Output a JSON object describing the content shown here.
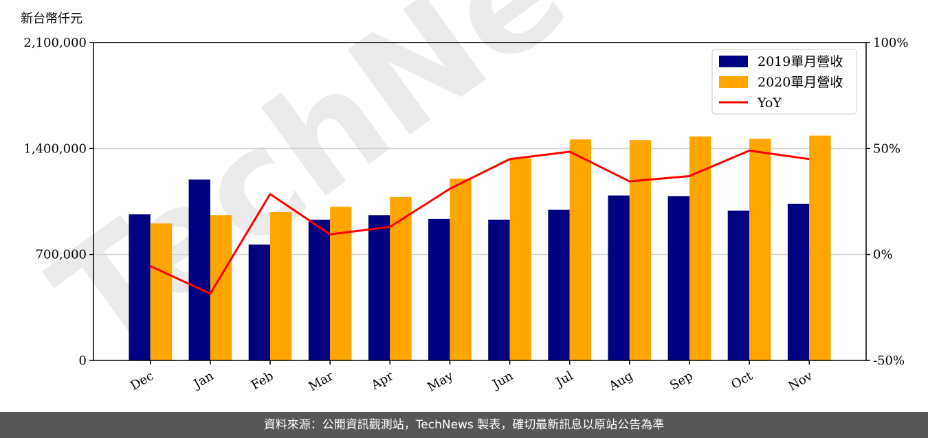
{
  "chart_data": {
    "type": "bar",
    "unit_label": "新台幣仟元",
    "categories": [
      "Dec",
      "Jan",
      "Feb",
      "Mar",
      "Apr",
      "May",
      "Jun",
      "Jul",
      "Aug",
      "Sep",
      "Oct",
      "Nov"
    ],
    "series": [
      {
        "name": "2019單月營收",
        "type": "bar",
        "color": "#000080",
        "values": [
          965000,
          1195000,
          765000,
          930000,
          960000,
          935000,
          930000,
          995000,
          1090000,
          1085000,
          990000,
          1035000
        ]
      },
      {
        "name": "2020單月營收",
        "type": "bar",
        "color": "#FFA500",
        "values": [
          905000,
          960000,
          980000,
          1015000,
          1080000,
          1200000,
          1335000,
          1460000,
          1455000,
          1480000,
          1465000,
          1485000
        ]
      },
      {
        "name": "YoY",
        "type": "line",
        "axis": "right",
        "color": "#FF0000",
        "values": [
          -5.5,
          -18.5,
          28.5,
          9.5,
          13.0,
          31.0,
          45.0,
          48.5,
          34.5,
          37.0,
          49.0,
          45.0
        ]
      }
    ],
    "left_axis": {
      "ylim": [
        0,
        2100000
      ],
      "ticks": [
        0,
        700000,
        1400000,
        2100000
      ],
      "tick_labels": [
        "0",
        "700,000",
        "1,400,000",
        "2,100,000"
      ]
    },
    "right_axis": {
      "ylim": [
        -50,
        100
      ],
      "ticks": [
        -50,
        0,
        50,
        100
      ],
      "tick_labels": [
        "-50%",
        "0%",
        "50%",
        "100%"
      ]
    },
    "grid": true,
    "legend_position": "top-right"
  },
  "watermark": "TechNews",
  "footer": "資料來源：公開資訊觀測站，TechNews 製表，確切最新訊息以原站公告為準"
}
